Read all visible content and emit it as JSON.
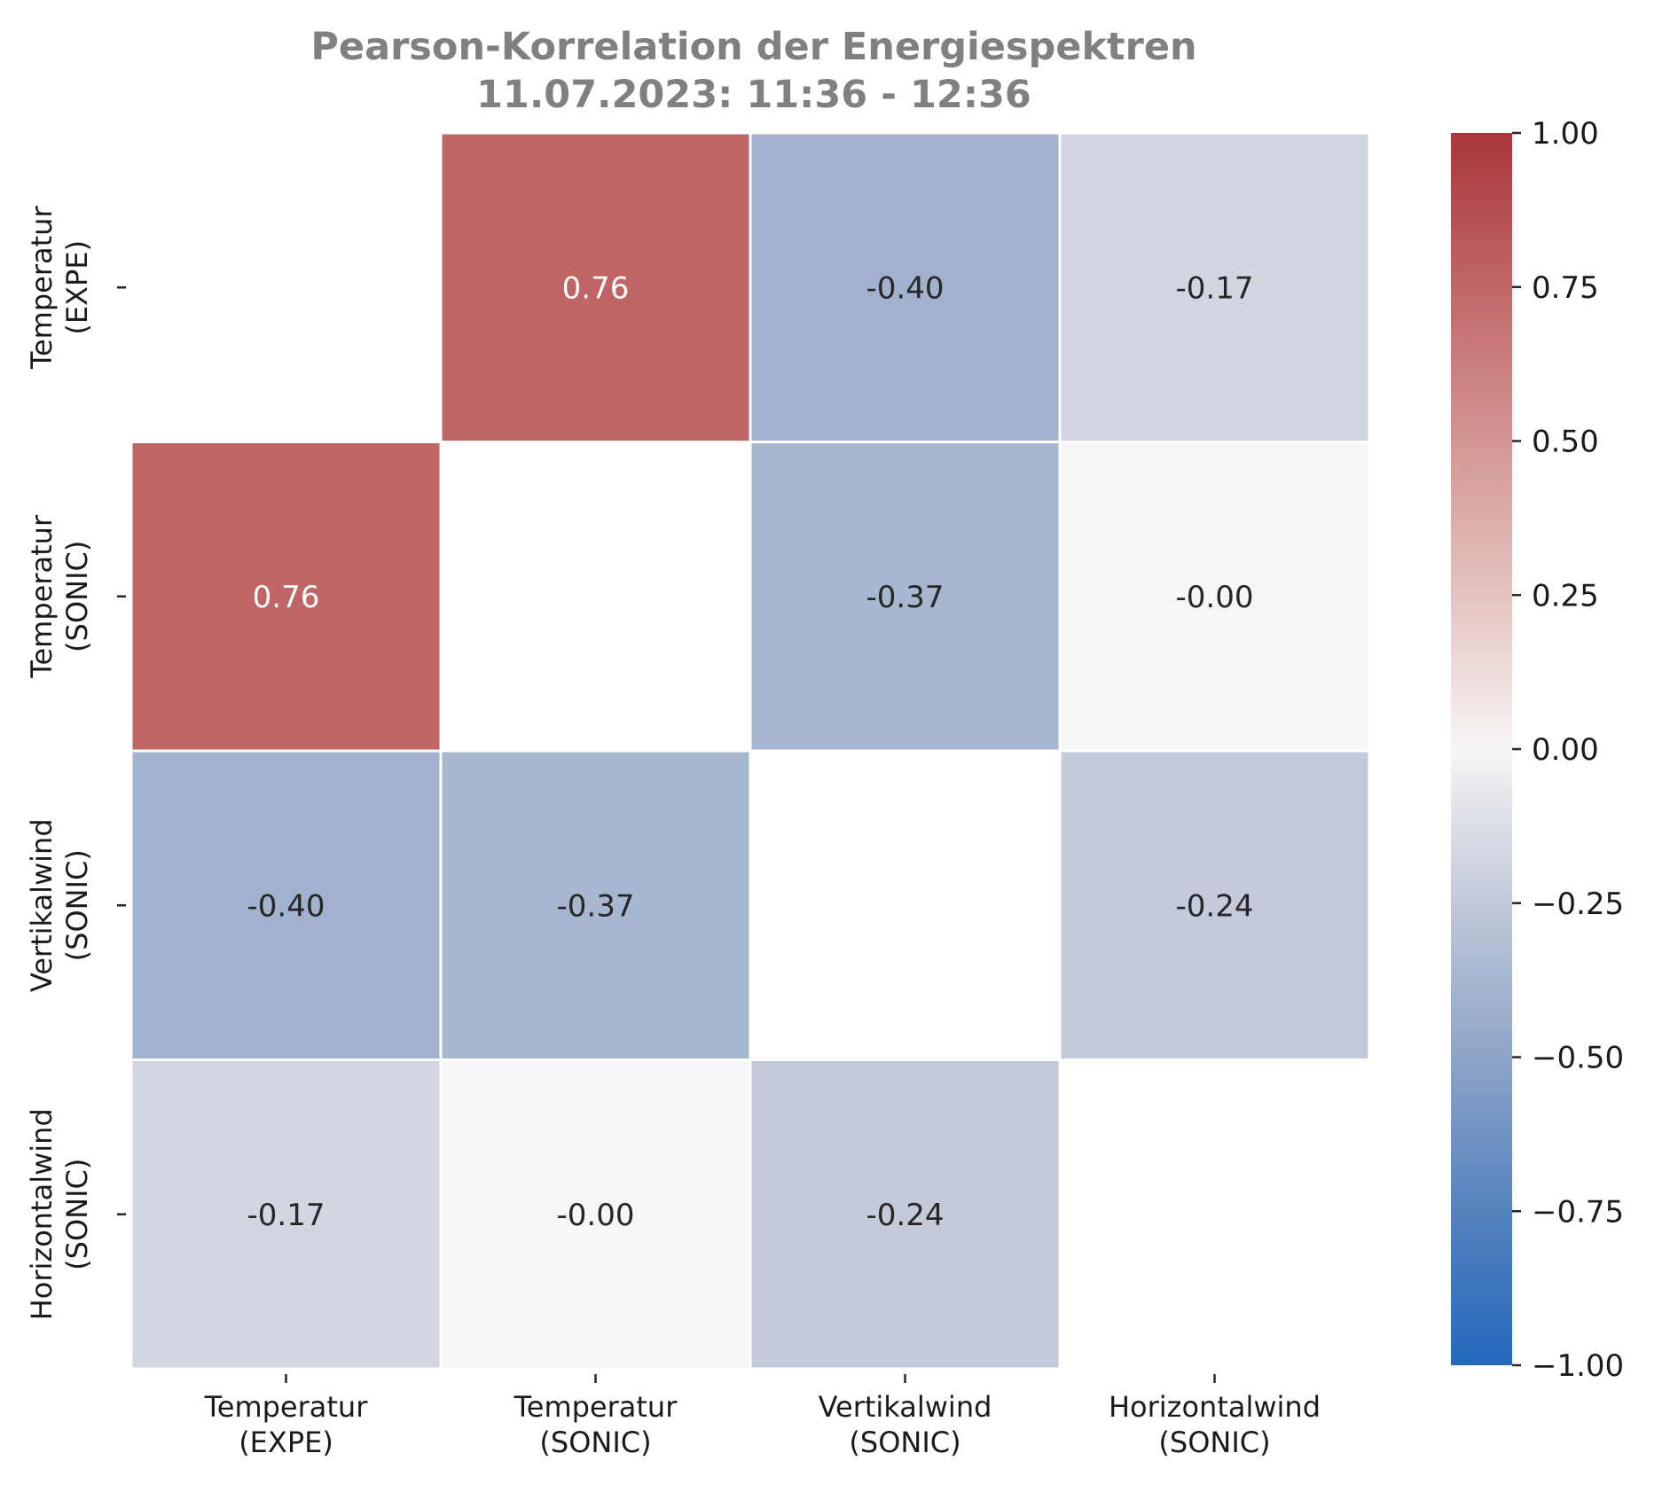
{
  "chart_data": {
    "type": "heatmap",
    "title_lines": [
      "Pearson-Korrelation der Energiespektren",
      "11.07.2023:  11:36 -  12:36"
    ],
    "xlabel": "",
    "ylabel": "",
    "x_categories": [
      [
        "Temperatur",
        "(EXPE)"
      ],
      [
        "Temperatur",
        "(SONIC)"
      ],
      [
        "Vertikalwind",
        "(SONIC)"
      ],
      [
        "Horizontalwind",
        "(SONIC)"
      ]
    ],
    "y_categories": [
      [
        "Temperatur",
        "(EXPE)"
      ],
      [
        "Temperatur",
        "(SONIC)"
      ],
      [
        "Vertikalwind",
        "(SONIC)"
      ],
      [
        "Horizontalwind",
        "(SONIC)"
      ]
    ],
    "values": [
      [
        null,
        0.76,
        -0.4,
        -0.17
      ],
      [
        0.76,
        null,
        -0.37,
        -0.0
      ],
      [
        -0.4,
        -0.37,
        null,
        -0.24
      ],
      [
        -0.17,
        -0.0,
        -0.24,
        null
      ]
    ],
    "value_labels": [
      [
        "",
        "0.76",
        "-0.40",
        "-0.17"
      ],
      [
        "0.76",
        "",
        "-0.37",
        "-0.00"
      ],
      [
        "-0.40",
        "-0.37",
        "",
        "-0.24"
      ],
      [
        "-0.17",
        "-0.00",
        "-0.24",
        ""
      ]
    ],
    "colorbar": {
      "range": [
        -1.0,
        1.0
      ],
      "ticks": [
        1.0,
        0.75,
        0.5,
        0.25,
        0.0,
        -0.25,
        -0.5,
        -0.75,
        -1.0
      ],
      "tick_labels": [
        "1.00",
        "0.75",
        "0.50",
        "0.25",
        "0.00",
        "−0.25",
        "−0.50",
        "−0.75",
        "−1.00"
      ],
      "colormap": "vlag",
      "color_low": "#2369bd",
      "color_mid": "#f7f5f5",
      "color_high": "#a9373b"
    },
    "grid": false,
    "legend": "colorbar-right"
  }
}
